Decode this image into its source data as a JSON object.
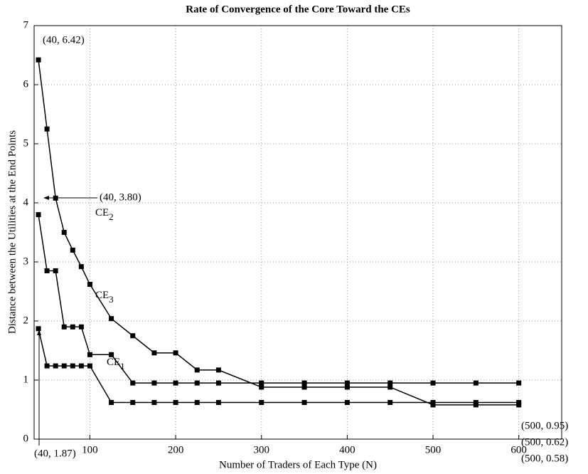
{
  "chart_data": {
    "type": "line",
    "title": "Rate of Convergence of the Core Toward the CEs",
    "x_label": "Number of Traders of Each Type (N)",
    "y_label": "Distance between the Utilities at the End Points",
    "x": [
      40,
      50,
      60,
      70,
      80,
      90,
      100,
      125,
      150,
      175,
      200,
      225,
      250,
      300,
      350,
      400,
      450,
      500,
      550,
      600
    ],
    "series": [
      {
        "name": "CE2",
        "color": "#000000",
        "values": [
          6.42,
          5.25,
          4.08,
          3.5,
          3.2,
          2.92,
          2.62,
          2.04,
          1.75,
          1.46,
          1.46,
          1.17,
          1.17,
          0.88,
          0.88,
          0.88,
          0.88,
          0.58,
          0.58,
          0.58
        ]
      },
      {
        "name": "CE3",
        "color": "#000000",
        "values": [
          3.8,
          2.85,
          2.85,
          1.9,
          1.9,
          1.9,
          1.43,
          1.43,
          0.95,
          0.95,
          0.95,
          0.95,
          0.95,
          0.95,
          0.95,
          0.95,
          0.95,
          0.95,
          0.95,
          0.95
        ]
      },
      {
        "name": "CE1",
        "color": "#000000",
        "values": [
          1.87,
          1.24,
          1.24,
          1.24,
          1.24,
          1.24,
          1.24,
          0.62,
          0.62,
          0.62,
          0.62,
          0.62,
          0.62,
          0.62,
          0.62,
          0.62,
          0.62,
          0.62,
          0.62,
          0.62
        ]
      }
    ],
    "curve_labels": [
      {
        "text": "CE",
        "sub": "2"
      },
      {
        "text": "CE",
        "sub": "3"
      },
      {
        "text": "CE",
        "sub": "1"
      }
    ],
    "annotations": [
      "(40, 6.42)",
      "(40, 3.80)",
      "(40, 1.87)",
      "(500, 0.95)",
      "(500, 0.62)",
      "(500, 0.58)"
    ],
    "xlim": [
      35,
      650
    ],
    "xticks": [
      100,
      200,
      300,
      400,
      500,
      600
    ],
    "ylim": [
      0,
      7
    ],
    "yticks": [
      0,
      1,
      2,
      3,
      4,
      5,
      6,
      7
    ],
    "grid": true
  }
}
